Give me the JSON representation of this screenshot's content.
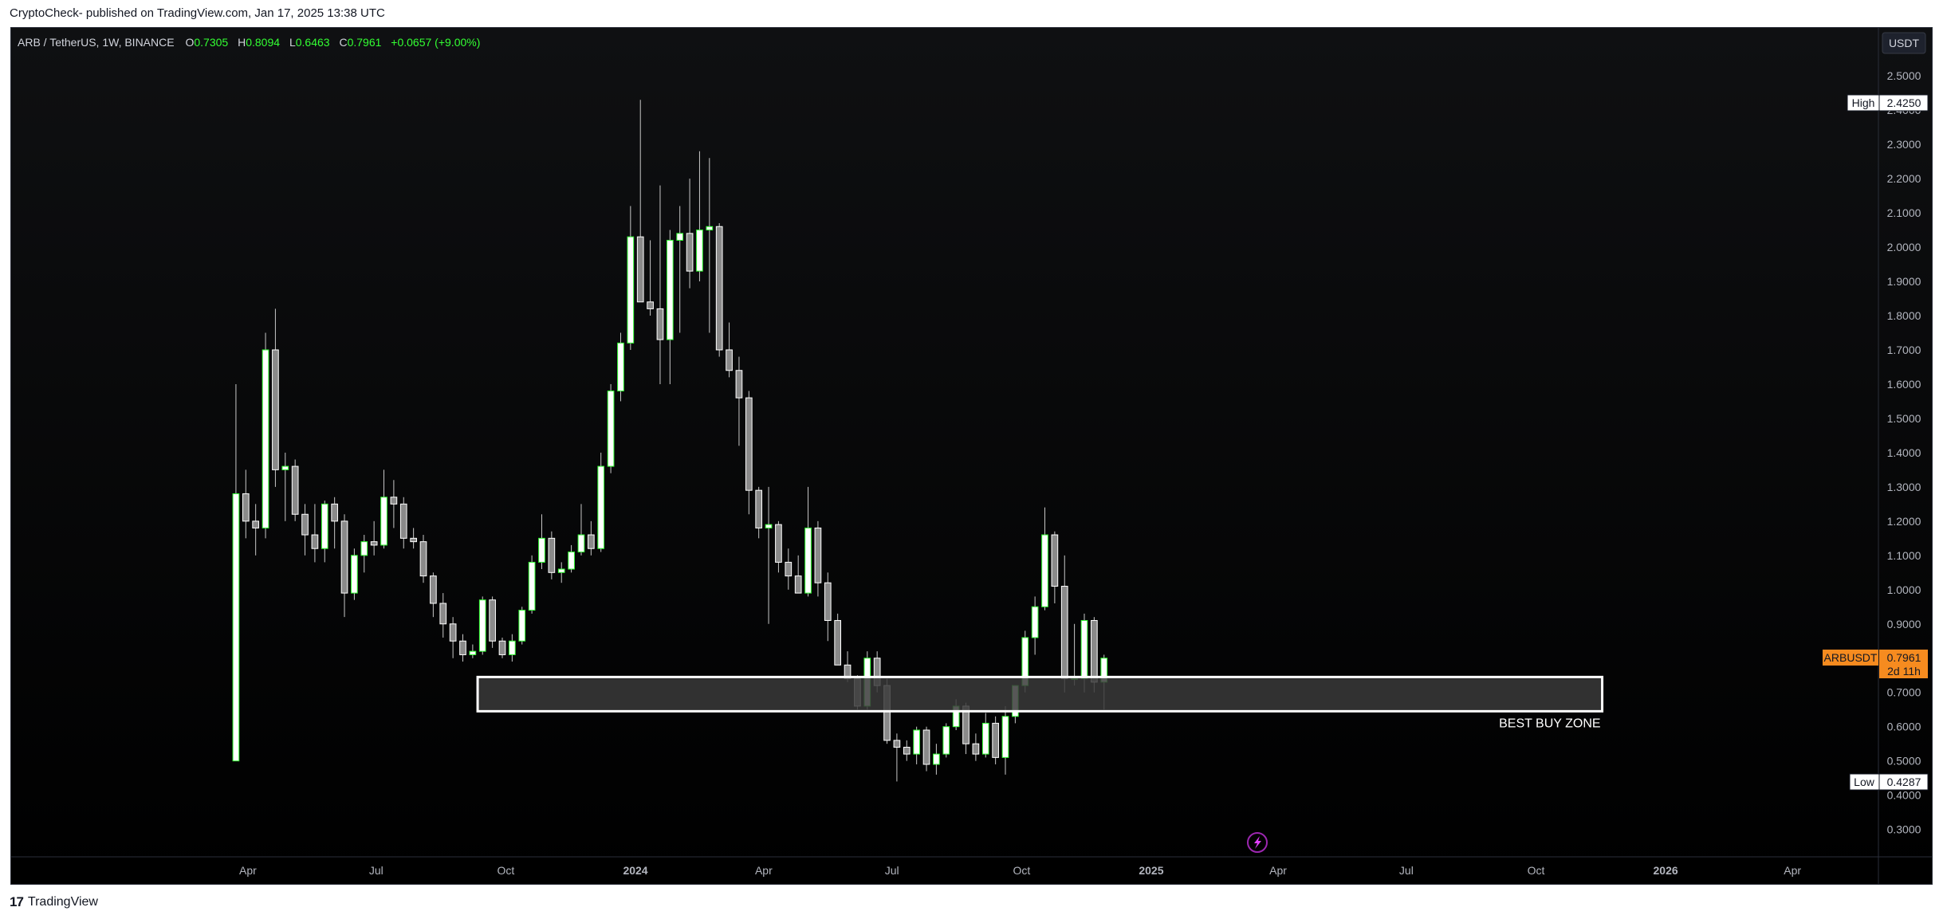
{
  "header": {
    "attribution": "CryptoCheck- published on TradingView.com, Jan 17, 2025 13:38 UTC"
  },
  "footer": {
    "logo_text": "17",
    "brand": "TradingView"
  },
  "legend": {
    "symbol": "ARB / TetherUS, 1W, BINANCE",
    "open_label": "O",
    "open": "0.7305",
    "high_label": "H",
    "high": "0.8094",
    "low_label": "L",
    "low": "0.6463",
    "close_label": "C",
    "close": "0.7961",
    "change": "+0.0657 (+9.00%)"
  },
  "price_scale": {
    "currency": "USDT",
    "high_tag_label": "High",
    "high_tag_value": "2.4250",
    "low_tag_label": "Low",
    "low_tag_value": "0.4287",
    "symbol_tag": "ARBUSDT",
    "price_tag": "0.7961",
    "countdown": "2d 11h"
  },
  "annotation": {
    "zone_label": "BEST BUY ZONE"
  },
  "colors": {
    "background_top": "#0f1012",
    "background_bottom": "#000000",
    "bull_fill": "#ffffff",
    "bull_border": "#33ff33",
    "bear_fill": "#8a8a8a",
    "bear_border": "#ffffff",
    "wick": "#c8c8c8",
    "legend_value": "#33ff33",
    "tag_orange": "#f68b1f",
    "zone_fill": "#3a3a3a",
    "zone_border": "#ffffff"
  },
  "chart_data": {
    "type": "candlestick",
    "symbol": "ARB / TetherUS",
    "interval": "1W",
    "exchange": "BINANCE",
    "ylim": [
      0.22,
      2.64
    ],
    "yticks": [
      "0.3000",
      "0.4000",
      "0.5000",
      "0.6000",
      "0.7000",
      "0.8000",
      "0.9000",
      "1.0000",
      "1.1000",
      "1.2000",
      "1.3000",
      "1.4000",
      "1.5000",
      "1.6000",
      "1.7000",
      "1.8000",
      "1.9000",
      "2.0000",
      "2.1000",
      "2.2000",
      "2.3000",
      "2.4000",
      "2.5000"
    ],
    "x_tick_labels": [
      {
        "label": "Apr",
        "date": "2023-04-01"
      },
      {
        "label": "Jul",
        "date": "2023-07-01"
      },
      {
        "label": "Oct",
        "date": "2023-10-01"
      },
      {
        "label": "2024",
        "date": "2024-01-01"
      },
      {
        "label": "Apr",
        "date": "2024-04-01"
      },
      {
        "label": "Jul",
        "date": "2024-07-01"
      },
      {
        "label": "Oct",
        "date": "2024-10-01"
      },
      {
        "label": "2025",
        "date": "2025-01-01"
      },
      {
        "label": "Apr",
        "date": "2025-04-01"
      },
      {
        "label": "Jul",
        "date": "2025-07-01"
      },
      {
        "label": "Oct",
        "date": "2025-10-01"
      },
      {
        "label": "2026",
        "date": "2026-01-01"
      },
      {
        "label": "Apr",
        "date": "2026-04-01"
      }
    ],
    "x_range": [
      "2022-10-15",
      "2026-06-01"
    ],
    "first_candle_date": "2023-03-20",
    "candles": [
      [
        0.5,
        1.6,
        0.5,
        1.28
      ],
      [
        1.28,
        1.35,
        1.15,
        1.2
      ],
      [
        1.2,
        1.25,
        1.1,
        1.18
      ],
      [
        1.18,
        1.75,
        1.15,
        1.7
      ],
      [
        1.7,
        1.82,
        1.3,
        1.35
      ],
      [
        1.35,
        1.4,
        1.2,
        1.36
      ],
      [
        1.36,
        1.38,
        1.2,
        1.22
      ],
      [
        1.22,
        1.25,
        1.1,
        1.16
      ],
      [
        1.16,
        1.25,
        1.08,
        1.12
      ],
      [
        1.12,
        1.26,
        1.08,
        1.25
      ],
      [
        1.25,
        1.27,
        1.12,
        1.2
      ],
      [
        1.2,
        1.22,
        0.92,
        0.99
      ],
      [
        0.99,
        1.12,
        0.97,
        1.1
      ],
      [
        1.1,
        1.16,
        1.05,
        1.14
      ],
      [
        1.14,
        1.2,
        1.1,
        1.13
      ],
      [
        1.13,
        1.35,
        1.12,
        1.27
      ],
      [
        1.27,
        1.32,
        1.18,
        1.25
      ],
      [
        1.25,
        1.27,
        1.12,
        1.15
      ],
      [
        1.15,
        1.18,
        1.12,
        1.14
      ],
      [
        1.14,
        1.16,
        1.02,
        1.04
      ],
      [
        1.04,
        1.05,
        0.92,
        0.96
      ],
      [
        0.96,
        0.99,
        0.86,
        0.9
      ],
      [
        0.9,
        0.92,
        0.8,
        0.85
      ],
      [
        0.85,
        0.87,
        0.79,
        0.81
      ],
      [
        0.81,
        0.84,
        0.8,
        0.82
      ],
      [
        0.82,
        0.98,
        0.81,
        0.97
      ],
      [
        0.97,
        0.98,
        0.83,
        0.85
      ],
      [
        0.85,
        0.86,
        0.8,
        0.81
      ],
      [
        0.81,
        0.87,
        0.79,
        0.85
      ],
      [
        0.85,
        0.95,
        0.84,
        0.94
      ],
      [
        0.94,
        1.1,
        0.93,
        1.08
      ],
      [
        1.08,
        1.22,
        1.06,
        1.15
      ],
      [
        1.15,
        1.17,
        1.03,
        1.05
      ],
      [
        1.05,
        1.08,
        1.02,
        1.06
      ],
      [
        1.06,
        1.13,
        1.05,
        1.11
      ],
      [
        1.11,
        1.25,
        1.1,
        1.16
      ],
      [
        1.16,
        1.2,
        1.1,
        1.12
      ],
      [
        1.12,
        1.4,
        1.11,
        1.36
      ],
      [
        1.36,
        1.6,
        1.34,
        1.58
      ],
      [
        1.58,
        1.75,
        1.55,
        1.72
      ],
      [
        1.72,
        2.12,
        1.7,
        2.03
      ],
      [
        2.03,
        2.43,
        1.85,
        1.84
      ],
      [
        1.84,
        2.02,
        1.8,
        1.82
      ],
      [
        1.82,
        2.18,
        1.6,
        1.73
      ],
      [
        1.73,
        2.05,
        1.6,
        2.02
      ],
      [
        2.02,
        2.12,
        1.75,
        2.04
      ],
      [
        2.04,
        2.2,
        1.88,
        1.93
      ],
      [
        1.93,
        2.28,
        1.9,
        2.05
      ],
      [
        2.05,
        2.26,
        1.75,
        2.06
      ],
      [
        2.06,
        2.07,
        1.68,
        1.7
      ],
      [
        1.7,
        1.78,
        1.62,
        1.64
      ],
      [
        1.64,
        1.68,
        1.42,
        1.56
      ],
      [
        1.56,
        1.58,
        1.22,
        1.29
      ],
      [
        1.29,
        1.3,
        1.15,
        1.18
      ],
      [
        1.18,
        1.3,
        0.9,
        1.19
      ],
      [
        1.19,
        1.2,
        1.05,
        1.08
      ],
      [
        1.08,
        1.12,
        1.0,
        1.04
      ],
      [
        1.04,
        1.1,
        0.99,
        0.99
      ],
      [
        0.99,
        1.3,
        0.98,
        1.18
      ],
      [
        1.18,
        1.2,
        0.98,
        1.02
      ],
      [
        1.02,
        1.05,
        0.85,
        0.91
      ],
      [
        0.91,
        0.93,
        0.78,
        0.78
      ],
      [
        0.78,
        0.82,
        0.73,
        0.74
      ],
      [
        0.74,
        0.75,
        0.65,
        0.66
      ],
      [
        0.66,
        0.82,
        0.65,
        0.8
      ],
      [
        0.8,
        0.82,
        0.7,
        0.72
      ],
      [
        0.72,
        0.74,
        0.55,
        0.56
      ],
      [
        0.56,
        0.58,
        0.44,
        0.54
      ],
      [
        0.54,
        0.56,
        0.5,
        0.52
      ],
      [
        0.52,
        0.6,
        0.49,
        0.59
      ],
      [
        0.59,
        0.6,
        0.47,
        0.49
      ],
      [
        0.49,
        0.55,
        0.46,
        0.52
      ],
      [
        0.52,
        0.61,
        0.51,
        0.6
      ],
      [
        0.6,
        0.68,
        0.59,
        0.66
      ],
      [
        0.66,
        0.67,
        0.52,
        0.55
      ],
      [
        0.55,
        0.58,
        0.5,
        0.52
      ],
      [
        0.52,
        0.64,
        0.51,
        0.61
      ],
      [
        0.61,
        0.63,
        0.49,
        0.51
      ],
      [
        0.51,
        0.66,
        0.46,
        0.63
      ],
      [
        0.63,
        0.72,
        0.61,
        0.72
      ],
      [
        0.72,
        0.88,
        0.7,
        0.86
      ],
      [
        0.86,
        0.98,
        0.81,
        0.95
      ],
      [
        0.95,
        1.24,
        0.94,
        1.16
      ],
      [
        1.16,
        1.17,
        0.96,
        1.01
      ],
      [
        1.01,
        1.1,
        0.7,
        0.74
      ],
      [
        0.74,
        0.9,
        0.72,
        0.74
      ],
      [
        0.74,
        0.93,
        0.7,
        0.91
      ],
      [
        0.91,
        0.92,
        0.7,
        0.73
      ],
      [
        0.73,
        0.81,
        0.65,
        0.8
      ]
    ],
    "zone": {
      "label": "BEST BUY ZONE",
      "y_top": 0.745,
      "y_bottom": 0.645,
      "date_start": "2023-09-11",
      "date_end": "2025-11-17"
    },
    "high_marker": 2.425,
    "low_marker": 0.4287,
    "last_price": 0.7961
  }
}
